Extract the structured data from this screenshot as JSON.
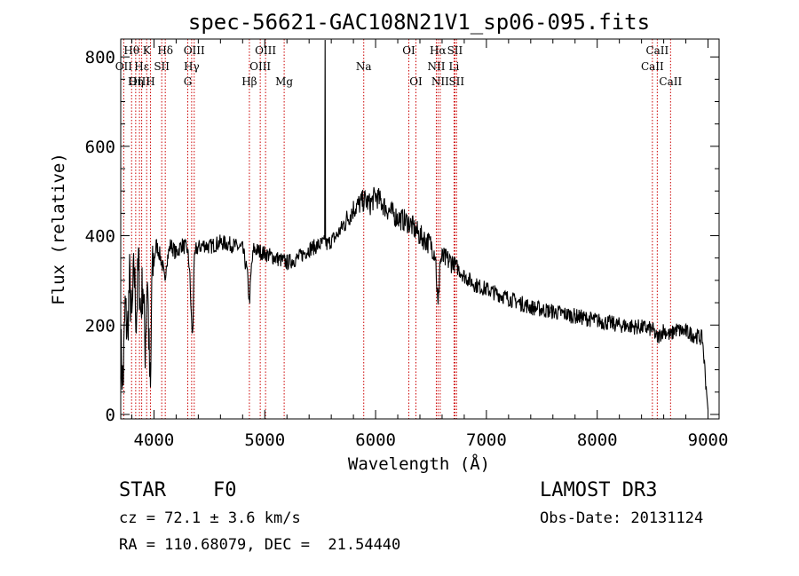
{
  "chart_data": {
    "type": "line",
    "title": "spec-56621-GAC108N21V1_sp06-095.fits",
    "xlabel": "Wavelength (Å)",
    "ylabel": "Flux (relative)",
    "xlim": [
      3700,
      9100
    ],
    "ylim": [
      -10,
      840
    ],
    "xticks": [
      4000,
      5000,
      6000,
      7000,
      8000,
      9000
    ],
    "yticks": [
      0,
      200,
      400,
      600,
      800
    ],
    "grid": false,
    "line_color": "#000000",
    "marker_color": "#cc0000",
    "spectrum_anchors": [
      [
        3700,
        150
      ],
      [
        3720,
        60
      ],
      [
        3740,
        240
      ],
      [
        3760,
        180
      ],
      [
        3780,
        300
      ],
      [
        3800,
        200
      ],
      [
        3820,
        330
      ],
      [
        3840,
        210
      ],
      [
        3860,
        340
      ],
      [
        3880,
        230
      ],
      [
        3900,
        300
      ],
      [
        3920,
        150
      ],
      [
        3940,
        320
      ],
      [
        3960,
        90
      ],
      [
        3970,
        30
      ],
      [
        3980,
        300
      ],
      [
        4000,
        340
      ],
      [
        4020,
        380
      ],
      [
        4050,
        360
      ],
      [
        4080,
        330
      ],
      [
        4100,
        290
      ],
      [
        4110,
        340
      ],
      [
        4150,
        380
      ],
      [
        4200,
        360
      ],
      [
        4250,
        380
      ],
      [
        4300,
        370
      ],
      [
        4320,
        330
      ],
      [
        4340,
        200
      ],
      [
        4350,
        170
      ],
      [
        4360,
        330
      ],
      [
        4380,
        370
      ],
      [
        4450,
        380
      ],
      [
        4500,
        375
      ],
      [
        4600,
        385
      ],
      [
        4700,
        380
      ],
      [
        4800,
        370
      ],
      [
        4840,
        320
      ],
      [
        4861,
        250
      ],
      [
        4880,
        330
      ],
      [
        4900,
        370
      ],
      [
        5000,
        360
      ],
      [
        5100,
        350
      ],
      [
        5200,
        340
      ],
      [
        5300,
        350
      ],
      [
        5400,
        370
      ],
      [
        5500,
        380
      ],
      [
        5545,
        385
      ],
      [
        5560,
        380
      ],
      [
        5650,
        400
      ],
      [
        5700,
        420
      ],
      [
        5800,
        460
      ],
      [
        5900,
        480
      ],
      [
        5950,
        470
      ],
      [
        6000,
        490
      ],
      [
        6100,
        460
      ],
      [
        6200,
        440
      ],
      [
        6300,
        430
      ],
      [
        6400,
        400
      ],
      [
        6500,
        380
      ],
      [
        6540,
        360
      ],
      [
        6563,
        230
      ],
      [
        6580,
        340
      ],
      [
        6600,
        350
      ],
      [
        6700,
        340
      ],
      [
        6800,
        310
      ],
      [
        6900,
        290
      ],
      [
        7000,
        280
      ],
      [
        7200,
        260
      ],
      [
        7400,
        240
      ],
      [
        7600,
        230
      ],
      [
        7800,
        220
      ],
      [
        8000,
        210
      ],
      [
        8200,
        200
      ],
      [
        8400,
        195
      ],
      [
        8500,
        190
      ],
      [
        8542,
        170
      ],
      [
        8600,
        190
      ],
      [
        8662,
        175
      ],
      [
        8700,
        190
      ],
      [
        8800,
        185
      ],
      [
        8900,
        175
      ],
      [
        8950,
        170
      ],
      [
        8990,
        40
      ],
      [
        9000,
        10
      ]
    ],
    "noise_amplitude": 18,
    "spike": {
      "x": 5544,
      "y": 840
    },
    "lines": [
      {
        "label": "Hθ",
        "x": 3798,
        "row": 0
      },
      {
        "label": "OII",
        "x": 3727,
        "row": 1
      },
      {
        "label": "OIII",
        "x": 3869,
        "row": 2
      },
      {
        "label": "Hε",
        "x": 3889,
        "row": 1
      },
      {
        "label": "Hη",
        "x": 3835,
        "row": 2
      },
      {
        "label": "K",
        "x": 3934,
        "row": 0
      },
      {
        "label": "H",
        "x": 3968,
        "row": 2
      },
      {
        "label": "SII",
        "x": 4070,
        "row": 1
      },
      {
        "label": "Hδ",
        "x": 4102,
        "row": 0
      },
      {
        "label": "OIII",
        "x": 4363,
        "row": 0
      },
      {
        "label": "Hγ",
        "x": 4340,
        "row": 1
      },
      {
        "label": "G",
        "x": 4305,
        "row": 2
      },
      {
        "label": "Hβ",
        "x": 4861,
        "row": 2
      },
      {
        "label": "OIII",
        "x": 5007,
        "row": 0
      },
      {
        "label": "OIII",
        "x": 4959,
        "row": 1
      },
      {
        "label": "Mg",
        "x": 5175,
        "row": 2
      },
      {
        "label": "Na",
        "x": 5893,
        "row": 1
      },
      {
        "label": "OI",
        "x": 6300,
        "row": 0
      },
      {
        "label": "OI",
        "x": 6364,
        "row": 2
      },
      {
        "label": "Hα",
        "x": 6563,
        "row": 0
      },
      {
        "label": "NII",
        "x": 6548,
        "row": 1
      },
      {
        "label": "NII",
        "x": 6583,
        "row": 2
      },
      {
        "label": "SII",
        "x": 6716,
        "row": 0
      },
      {
        "label": "Li",
        "x": 6708,
        "row": 1
      },
      {
        "label": "SII",
        "x": 6731,
        "row": 2
      },
      {
        "label": "CaII",
        "x": 8542,
        "row": 0
      },
      {
        "label": "CaII",
        "x": 8498,
        "row": 1
      },
      {
        "label": "CaII",
        "x": 8662,
        "row": 2
      }
    ]
  },
  "info": {
    "class": "STAR",
    "subclass": "F0",
    "survey": "LAMOST DR3",
    "redshift": "cz = 72.1 ± 3.6 km/s",
    "obs_date": "Obs-Date: 20131124",
    "coords": "RA = 110.68079, DEC =  21.54440"
  }
}
